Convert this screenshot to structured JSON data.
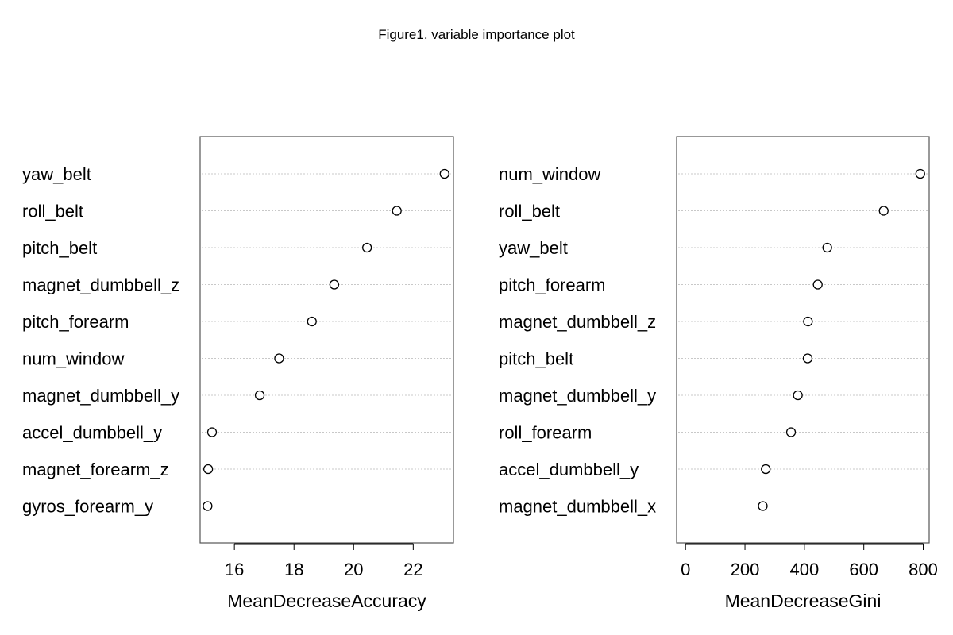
{
  "figure": {
    "title": "Figure1. variable importance plot"
  },
  "chart_data": [
    {
      "type": "scatter",
      "variables": [
        "yaw_belt",
        "roll_belt",
        "pitch_belt",
        "magnet_dumbbell_z",
        "pitch_forearm",
        "num_window",
        "magnet_dumbbell_y",
        "accel_dumbbell_y",
        "magnet_forearm_z",
        "gyros_forearm_y"
      ],
      "values": [
        23.05,
        21.45,
        20.45,
        19.35,
        18.6,
        17.5,
        16.85,
        15.25,
        15.12,
        15.1
      ],
      "xlabel": "MeanDecreaseAccuracy",
      "xlim": [
        14.85,
        23.35
      ],
      "xticks": [
        16,
        18,
        20,
        22
      ],
      "grid": "dotted-horizontal"
    },
    {
      "type": "scatter",
      "variables": [
        "num_window",
        "roll_belt",
        "yaw_belt",
        "pitch_forearm",
        "magnet_dumbbell_z",
        "pitch_belt",
        "magnet_dumbbell_y",
        "roll_forearm",
        "accel_dumbbell_y",
        "magnet_dumbbell_x"
      ],
      "values": [
        790,
        667,
        477,
        445,
        412,
        411,
        378,
        355,
        270,
        260
      ],
      "xlabel": "MeanDecreaseGini",
      "xlim": [
        -30,
        820
      ],
      "xticks": [
        0,
        200,
        400,
        600,
        800
      ],
      "grid": "dotted-horizontal"
    }
  ]
}
